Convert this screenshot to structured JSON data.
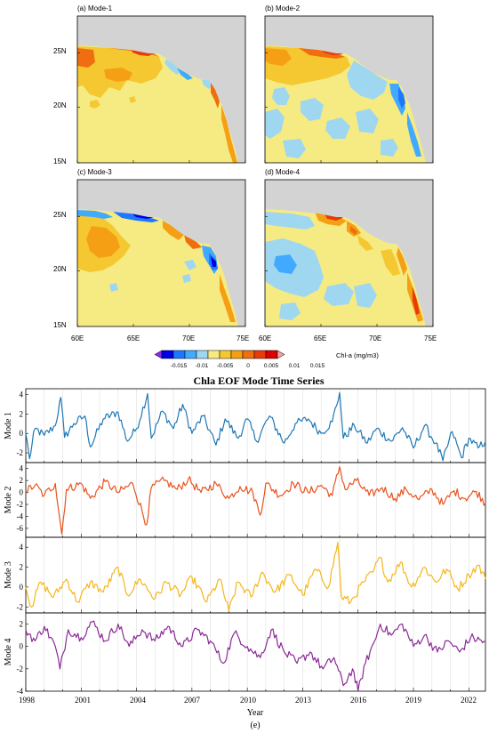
{
  "maps": {
    "panels": [
      {
        "title": "(a) Mode-1",
        "pattern": "mode1"
      },
      {
        "title": "(b) Mode-2",
        "pattern": "mode2"
      },
      {
        "title": "(c) Mode-3",
        "pattern": "mode3"
      },
      {
        "title": "(d) Mode-4",
        "pattern": "mode4"
      }
    ],
    "lat_ticks": [
      "25N",
      "20N",
      "15N"
    ],
    "lon_ticks": [
      "60E",
      "65E",
      "70E",
      "75E"
    ],
    "colors": {
      "land": "#d3d3d3",
      "bins": [
        "#8a2be2",
        "#0000e6",
        "#1e78ff",
        "#41aaff",
        "#a0d7f0",
        "#f5eb82",
        "#f5c832",
        "#f5a014",
        "#f06e0f",
        "#e63c0a",
        "#dc0000",
        "#f5a0a0"
      ]
    }
  },
  "colorbar": {
    "ticks": [
      "-0.015",
      "-0.01",
      "-0.005",
      "0",
      "0.005",
      "0.01",
      "0.015"
    ],
    "label": "Chl-a (mg/m3)"
  },
  "chart_data": {
    "type": "line",
    "title": "Chla EOF Mode Time Series",
    "xlabel": "Year",
    "panel_label": "(e)",
    "x_ticks": [
      "1998",
      "2001",
      "2004",
      "2007",
      "2010",
      "2013",
      "2016",
      "2019",
      "2022"
    ],
    "x_range": [
      1998.0,
      2022.9
    ],
    "series": [
      {
        "ylabel": "Mode 1",
        "color": "#1f77b4",
        "ylim": [
          -3,
          4.6
        ],
        "yticks": [
          "4",
          "2",
          "0",
          "-2"
        ],
        "key_points": [
          [
            1998.0,
            0.0
          ],
          [
            1998.2,
            -2.6
          ],
          [
            1998.5,
            0.5
          ],
          [
            1999.0,
            -0.2
          ],
          [
            1999.6,
            0.8
          ],
          [
            1999.9,
            3.7
          ],
          [
            2000.1,
            -0.4
          ],
          [
            2000.6,
            1.0
          ],
          [
            2001.2,
            1.8
          ],
          [
            2001.5,
            -1.4
          ],
          [
            2002.2,
            1.5
          ],
          [
            2003.0,
            2.2
          ],
          [
            2003.5,
            -0.8
          ],
          [
            2004.0,
            0.5
          ],
          [
            2004.6,
            4.1
          ],
          [
            2004.8,
            -0.5
          ],
          [
            2005.4,
            2.3
          ],
          [
            2006.0,
            0.5
          ],
          [
            2006.5,
            3.0
          ],
          [
            2007.0,
            0.0
          ],
          [
            2007.6,
            1.8
          ],
          [
            2008.3,
            -1.2
          ],
          [
            2008.8,
            1.5
          ],
          [
            2009.5,
            -0.5
          ],
          [
            2010.0,
            1.5
          ],
          [
            2010.5,
            -0.8
          ],
          [
            2011.2,
            1.8
          ],
          [
            2012.0,
            -1.0
          ],
          [
            2012.6,
            1.0
          ],
          [
            2013.3,
            1.5
          ],
          [
            2014.0,
            0.0
          ],
          [
            2014.6,
            1.2
          ],
          [
            2015.0,
            4.2
          ],
          [
            2015.2,
            -0.5
          ],
          [
            2015.8,
            0.8
          ],
          [
            2016.5,
            -1.0
          ],
          [
            2017.0,
            0.5
          ],
          [
            2017.8,
            -0.8
          ],
          [
            2018.4,
            0.6
          ],
          [
            2019.0,
            -1.5
          ],
          [
            2019.6,
            0.8
          ],
          [
            2020.2,
            -1.0
          ],
          [
            2020.6,
            -2.8
          ],
          [
            2021.1,
            0.2
          ],
          [
            2021.6,
            -2.5
          ],
          [
            2022.0,
            -0.5
          ],
          [
            2022.5,
            -1.5
          ],
          [
            2022.9,
            -0.8
          ]
        ]
      },
      {
        "ylabel": "Mode 2",
        "color": "#e8531f",
        "ylim": [
          -7.5,
          5
        ],
        "yticks": [
          "4",
          "2",
          "0",
          "-2",
          "-4",
          "-6"
        ],
        "key_points": [
          [
            1998.0,
            0.2
          ],
          [
            1998.5,
            1.2
          ],
          [
            1999.0,
            -0.5
          ],
          [
            1999.6,
            1.5
          ],
          [
            1999.95,
            -7.0
          ],
          [
            2000.2,
            0.5
          ],
          [
            2001.0,
            1.5
          ],
          [
            2001.5,
            -1.0
          ],
          [
            2002.3,
            1.8
          ],
          [
            2003.0,
            0.0
          ],
          [
            2003.8,
            1.5
          ],
          [
            2004.55,
            -5.4
          ],
          [
            2004.8,
            0.8
          ],
          [
            2005.5,
            2.0
          ],
          [
            2006.2,
            0.5
          ],
          [
            2006.8,
            2.2
          ],
          [
            2007.5,
            0.0
          ],
          [
            2008.3,
            1.5
          ],
          [
            2009.0,
            -1.0
          ],
          [
            2009.6,
            1.0
          ],
          [
            2010.3,
            0.0
          ],
          [
            2010.7,
            -3.8
          ],
          [
            2011.0,
            1.5
          ],
          [
            2011.8,
            -0.5
          ],
          [
            2012.5,
            1.5
          ],
          [
            2013.3,
            0.0
          ],
          [
            2014.0,
            1.2
          ],
          [
            2014.6,
            -0.5
          ],
          [
            2015.0,
            4.3
          ],
          [
            2015.3,
            0.5
          ],
          [
            2015.9,
            2.0
          ],
          [
            2016.6,
            -0.5
          ],
          [
            2017.3,
            0.8
          ],
          [
            2018.0,
            -1.0
          ],
          [
            2018.6,
            0.5
          ],
          [
            2019.3,
            -1.2
          ],
          [
            2020.0,
            0.5
          ],
          [
            2020.6,
            -2.0
          ],
          [
            2021.2,
            0.3
          ],
          [
            2021.8,
            -1.0
          ],
          [
            2022.4,
            0.2
          ],
          [
            2022.9,
            -1.8
          ]
        ]
      },
      {
        "ylabel": "Mode 3",
        "color": "#f5b61a",
        "ylim": [
          -2.6,
          5
        ],
        "yticks": [
          "4",
          "2",
          "0",
          "-2"
        ],
        "key_points": [
          [
            1998.0,
            0.0
          ],
          [
            1998.3,
            -2.0
          ],
          [
            1998.8,
            0.5
          ],
          [
            1999.5,
            -1.0
          ],
          [
            2000.2,
            0.8
          ],
          [
            2000.8,
            -1.5
          ],
          [
            2001.5,
            0.5
          ],
          [
            2002.2,
            -0.5
          ],
          [
            2003.0,
            2.0
          ],
          [
            2003.5,
            -0.8
          ],
          [
            2004.2,
            0.8
          ],
          [
            2005.0,
            -1.2
          ],
          [
            2005.6,
            0.5
          ],
          [
            2006.4,
            -0.8
          ],
          [
            2007.0,
            1.0
          ],
          [
            2007.8,
            -1.5
          ],
          [
            2008.5,
            0.8
          ],
          [
            2009.0,
            -2.4
          ],
          [
            2009.5,
            0.5
          ],
          [
            2010.2,
            -1.0
          ],
          [
            2010.8,
            1.5
          ],
          [
            2011.5,
            -0.5
          ],
          [
            2012.3,
            1.2
          ],
          [
            2013.0,
            -0.8
          ],
          [
            2013.7,
            1.8
          ],
          [
            2014.4,
            0.0
          ],
          [
            2014.9,
            4.5
          ],
          [
            2015.1,
            -1.0
          ],
          [
            2015.6,
            -1.5
          ],
          [
            2016.3,
            0.5
          ],
          [
            2016.8,
            1.5
          ],
          [
            2017.2,
            3.0
          ],
          [
            2017.6,
            0.5
          ],
          [
            2018.3,
            2.5
          ],
          [
            2018.9,
            0.0
          ],
          [
            2019.6,
            2.0
          ],
          [
            2020.2,
            0.5
          ],
          [
            2020.8,
            1.8
          ],
          [
            2021.4,
            -0.2
          ],
          [
            2022.0,
            1.2
          ],
          [
            2022.5,
            2.2
          ],
          [
            2022.9,
            0.8
          ]
        ]
      },
      {
        "ylabel": "Mode 4",
        "color": "#8b2a96",
        "ylim": [
          -4,
          3
        ],
        "yticks": [
          "2",
          "0",
          "-2",
          "-4"
        ],
        "key_points": [
          [
            1998.0,
            1.5
          ],
          [
            1998.5,
            0.5
          ],
          [
            1999.0,
            1.8
          ],
          [
            1999.6,
            0.0
          ],
          [
            1999.85,
            -2.0
          ],
          [
            2000.3,
            1.5
          ],
          [
            2001.0,
            0.8
          ],
          [
            2001.6,
            2.2
          ],
          [
            2002.3,
            0.5
          ],
          [
            2003.0,
            2.0
          ],
          [
            2003.6,
            0.0
          ],
          [
            2004.3,
            1.5
          ],
          [
            2005.0,
            0.5
          ],
          [
            2005.7,
            1.8
          ],
          [
            2006.5,
            0.0
          ],
          [
            2007.3,
            1.5
          ],
          [
            2008.0,
            0.5
          ],
          [
            2008.7,
            -1.5
          ],
          [
            2009.3,
            1.2
          ],
          [
            2010.0,
            0.0
          ],
          [
            2010.7,
            -1.0
          ],
          [
            2011.3,
            1.5
          ],
          [
            2012.0,
            -0.5
          ],
          [
            2012.7,
            -1.5
          ],
          [
            2013.4,
            -0.5
          ],
          [
            2014.1,
            -2.0
          ],
          [
            2014.7,
            -1.0
          ],
          [
            2015.2,
            -3.5
          ],
          [
            2015.7,
            -2.0
          ],
          [
            2016.0,
            -4.0
          ],
          [
            2016.4,
            -1.5
          ],
          [
            2016.9,
            0.5
          ],
          [
            2017.2,
            2.0
          ],
          [
            2017.8,
            1.0
          ],
          [
            2018.4,
            2.0
          ],
          [
            2019.0,
            0.0
          ],
          [
            2019.6,
            1.0
          ],
          [
            2020.3,
            -0.5
          ],
          [
            2020.9,
            0.5
          ],
          [
            2021.5,
            -0.5
          ],
          [
            2022.1,
            0.8
          ],
          [
            2022.9,
            0.4
          ]
        ]
      }
    ]
  }
}
